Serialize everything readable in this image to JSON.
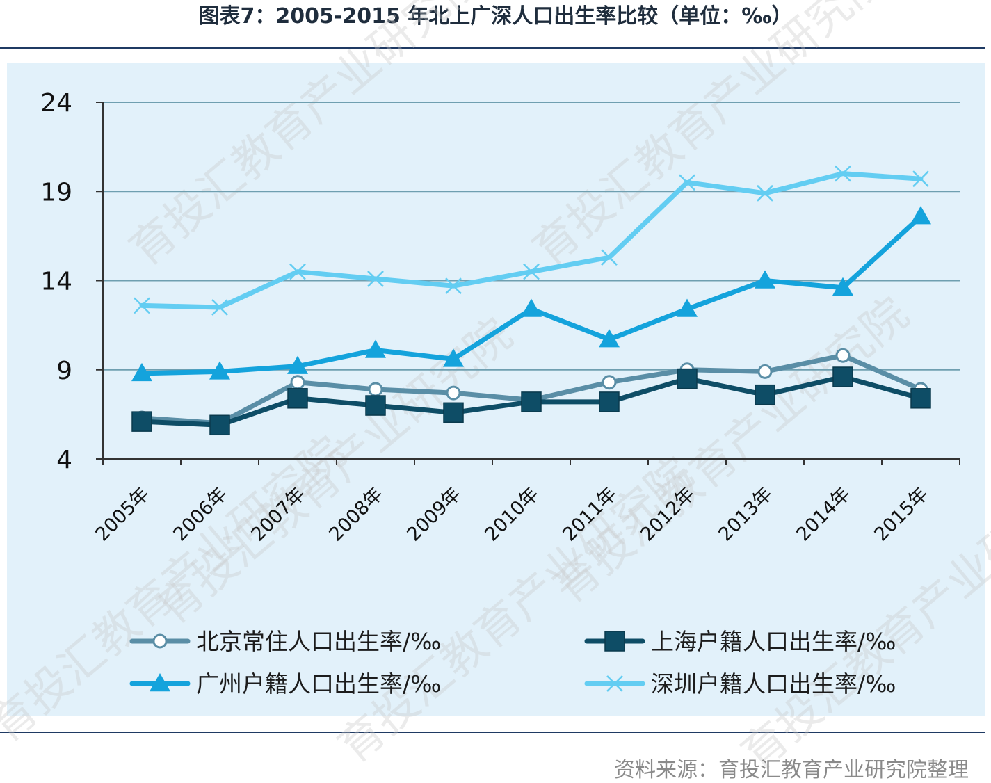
{
  "header": {
    "title": "图表7：2005-2015 年北上广深人口出生率比较（单位：‰）"
  },
  "footer": {
    "source": "资料来源：育投汇教育产业研究院整理"
  },
  "watermark": {
    "text": "育投汇教育产业研究院"
  },
  "colors": {
    "beijing": "#5a8ea6",
    "shanghai": "#0e4d66",
    "guangzhou": "#14a3dc",
    "shenzhen": "#63cdf2",
    "grid": "#6f9fb0",
    "panel": "#e2f1fa",
    "rule": "#1f3a63"
  },
  "chart_data": {
    "type": "line",
    "x": [
      "2005年",
      "2006年",
      "2007年",
      "2008年",
      "2009年",
      "2010年",
      "2011年",
      "2012年",
      "2013年",
      "2014年",
      "2015年"
    ],
    "ylim": [
      4,
      24
    ],
    "yticks": [
      4,
      9,
      14,
      19,
      24
    ],
    "grid": true,
    "legend_position": "bottom",
    "series": [
      {
        "name": "北京常住人口出生率/‰",
        "marker": "open-circle",
        "color_key": "beijing",
        "values": [
          6.3,
          6.0,
          8.3,
          7.9,
          7.7,
          7.3,
          8.3,
          9.0,
          8.9,
          9.8,
          7.9
        ]
      },
      {
        "name": "上海户籍人口出生率/‰",
        "marker": "square",
        "color_key": "shanghai",
        "values": [
          6.1,
          5.9,
          7.4,
          7.0,
          6.6,
          7.2,
          7.2,
          8.5,
          7.6,
          8.6,
          7.4
        ]
      },
      {
        "name": "广州户籍人口出生率/‰",
        "marker": "triangle",
        "color_key": "guangzhou",
        "values": [
          8.8,
          8.9,
          9.2,
          10.1,
          9.6,
          12.4,
          10.7,
          12.4,
          14.0,
          13.6,
          17.6
        ]
      },
      {
        "name": "深圳户籍人口出生率/‰",
        "marker": "x",
        "color_key": "shenzhen",
        "values": [
          12.6,
          12.5,
          14.5,
          14.1,
          13.7,
          14.5,
          15.3,
          19.5,
          18.9,
          20.0,
          19.7
        ]
      }
    ]
  }
}
